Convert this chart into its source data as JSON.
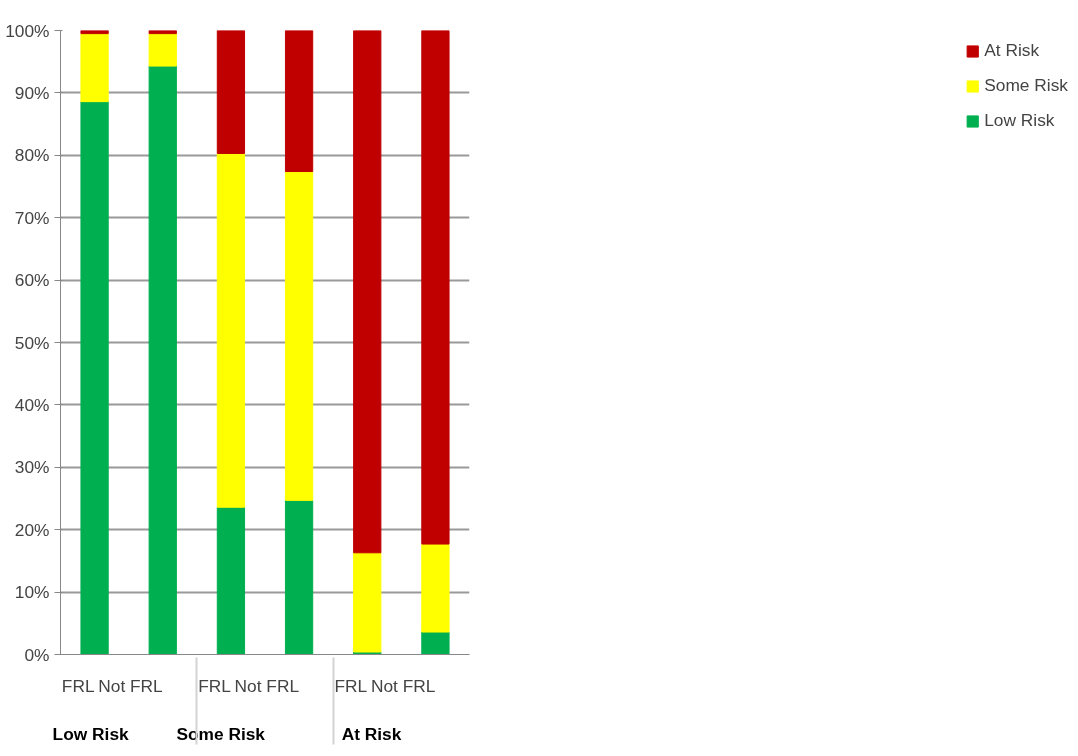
{
  "chart_data": {
    "type": "bar",
    "stacked": true,
    "categories": [
      "FRL",
      "Not FRL",
      "FRL",
      "Not FRL",
      "FRL",
      "Not FRL"
    ],
    "annotations": [
      "Low Risk",
      "Some Risk",
      "At Risk"
    ],
    "series": [
      {
        "name": "Low Risk",
        "color": "#00b050",
        "values": [
          88.6,
          94.3,
          23.6,
          24.7,
          0.4,
          3.6
        ]
      },
      {
        "name": "Some Risk",
        "color": "#ffff00",
        "values": [
          10.9,
          5.2,
          56.7,
          52.7,
          15.9,
          14.1
        ]
      },
      {
        "name": "At Risk",
        "color": "#c00000",
        "values": [
          0.5,
          0.5,
          19.7,
          22.6,
          83.7,
          82.3
        ]
      }
    ],
    "ylim": [
      0,
      100
    ],
    "yticks": [
      {
        "value": 0,
        "label": "0%"
      },
      {
        "value": 10,
        "label": "10%"
      },
      {
        "value": 20,
        "label": "20%"
      },
      {
        "value": 30,
        "label": "30%"
      },
      {
        "value": 40,
        "label": "40%"
      },
      {
        "value": 50,
        "label": "50%"
      },
      {
        "value": 60,
        "label": "60%"
      },
      {
        "value": 70,
        "label": "70%"
      },
      {
        "value": 80,
        "label": "80%"
      },
      {
        "value": 90,
        "label": "90%"
      },
      {
        "value": 100,
        "label": "100%"
      }
    ],
    "grid": "y",
    "legend": "right"
  }
}
